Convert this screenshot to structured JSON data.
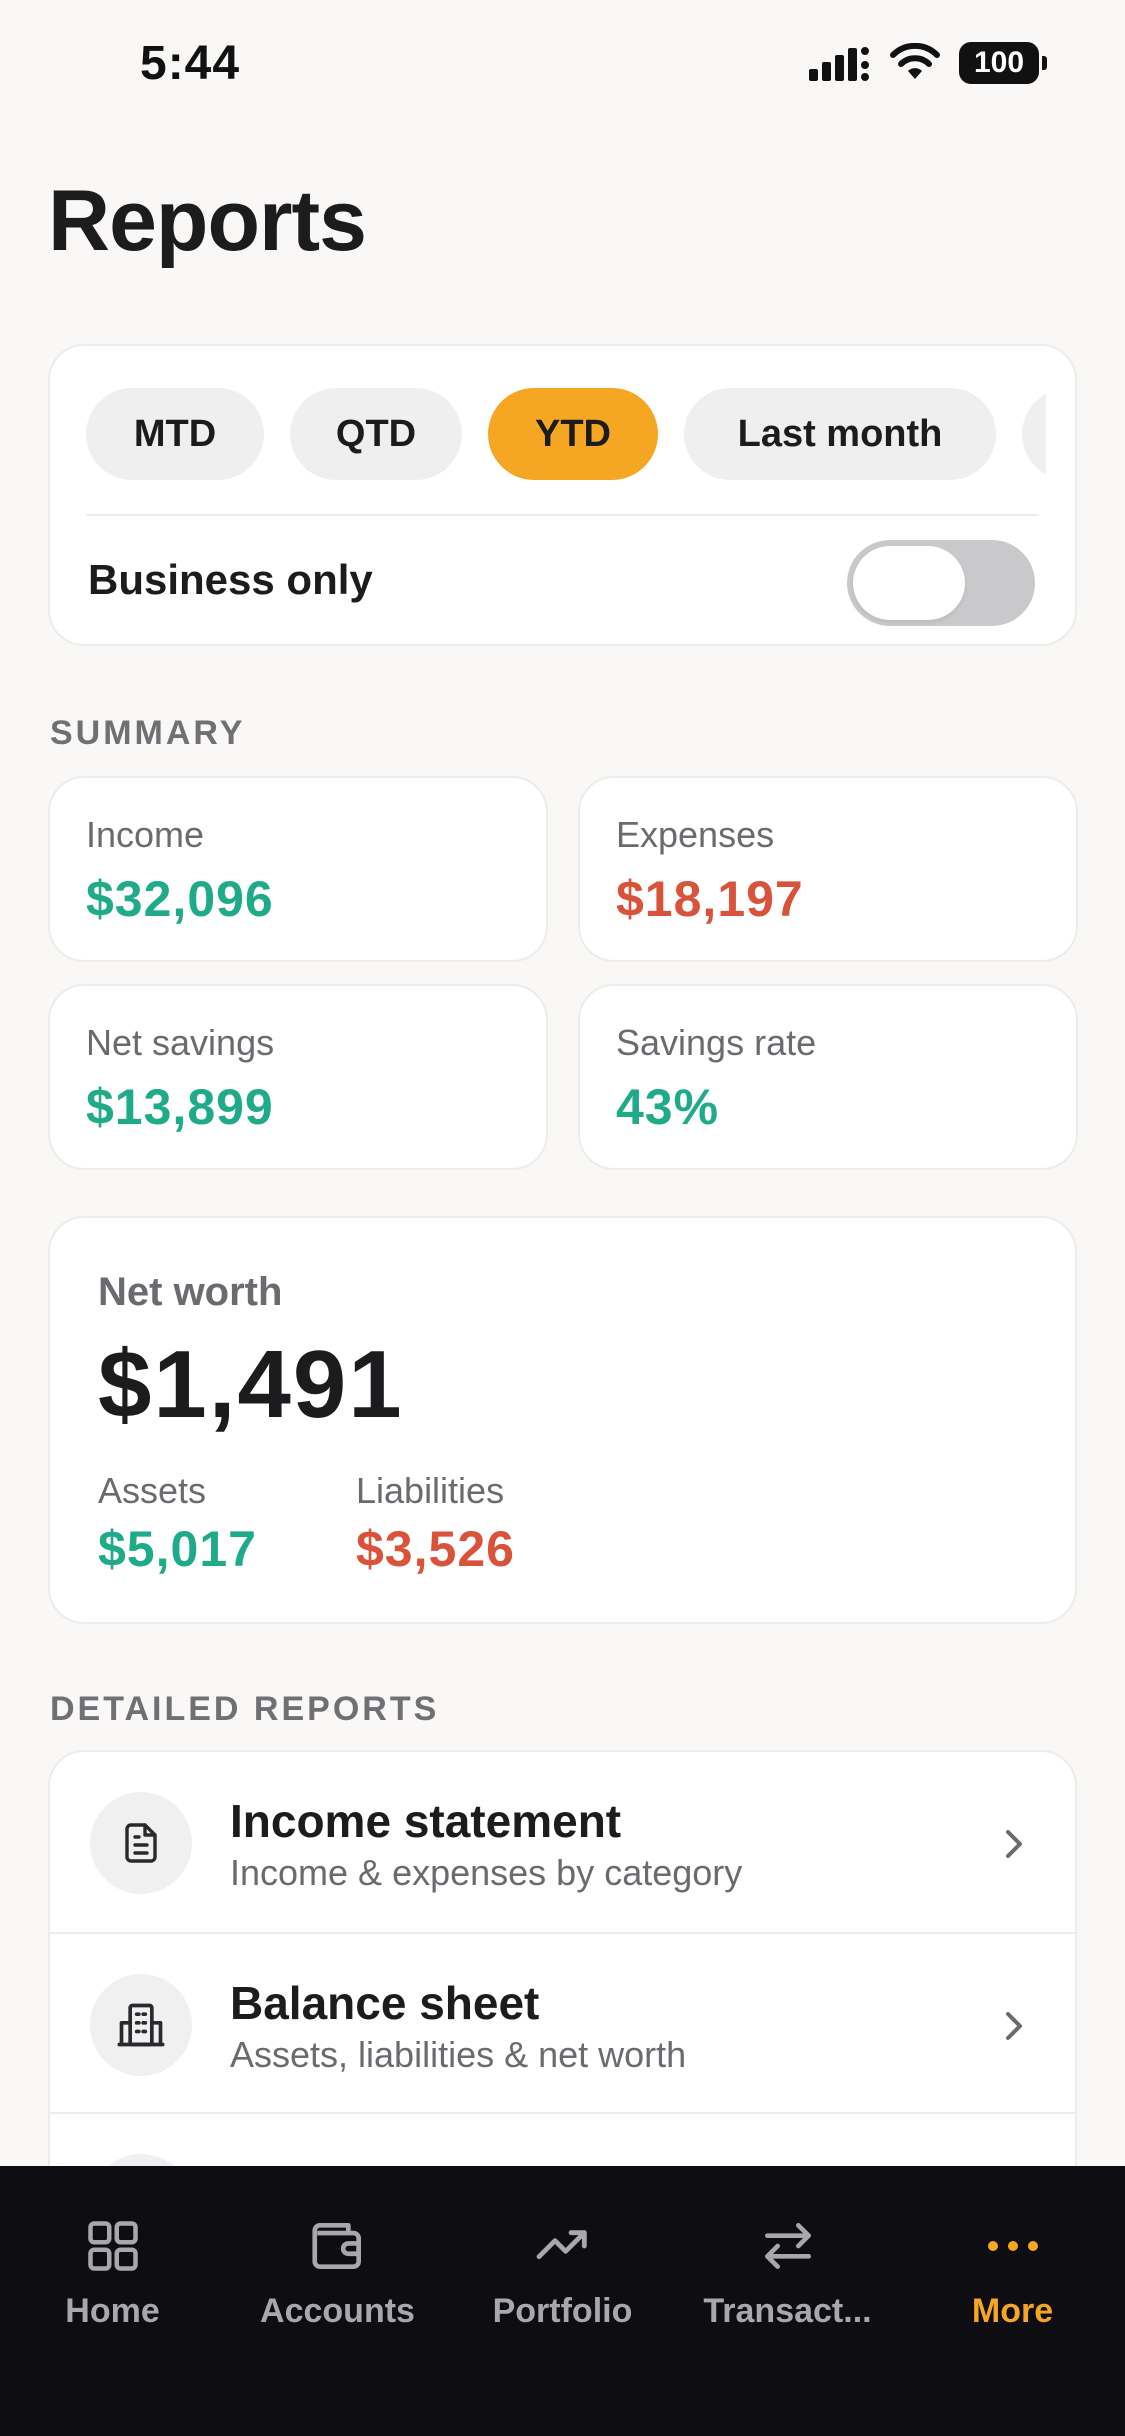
{
  "status_bar": {
    "time": "5:44",
    "battery": "100"
  },
  "header": {
    "title": "Reports"
  },
  "filters": {
    "periods": [
      "MTD",
      "QTD",
      "YTD",
      "Last month"
    ],
    "active_period": "YTD",
    "business_only_label": "Business only",
    "business_only_enabled": false
  },
  "summary": {
    "section_label": "SUMMARY",
    "income": {
      "label": "Income",
      "value": "$32,096"
    },
    "expenses": {
      "label": "Expenses",
      "value": "$18,197"
    },
    "net_savings": {
      "label": "Net savings",
      "value": "$13,899"
    },
    "savings_rate": {
      "label": "Savings rate",
      "value": "43%"
    }
  },
  "net_worth": {
    "label": "Net worth",
    "value": "$1,491",
    "assets": {
      "label": "Assets",
      "value": "$5,017"
    },
    "liabilities": {
      "label": "Liabilities",
      "value": "$3,526"
    }
  },
  "detailed_reports": {
    "section_label": "DETAILED REPORTS",
    "items": [
      {
        "title": "Income statement",
        "subtitle": "Income & expenses by category",
        "icon": "document-icon"
      },
      {
        "title": "Balance sheet",
        "subtitle": "Assets, liabilities & net worth",
        "icon": "building-icon"
      }
    ]
  },
  "tab_bar": {
    "tabs": [
      {
        "label": "Home",
        "icon": "grid-icon"
      },
      {
        "label": "Accounts",
        "icon": "wallet-icon"
      },
      {
        "label": "Portfolio",
        "icon": "trend-up-icon"
      },
      {
        "label": "Transact...",
        "icon": "transfer-icon"
      },
      {
        "label": "More",
        "icon": "more-icon"
      }
    ],
    "active_tab": "More"
  },
  "colors": {
    "accent": "#f5a623",
    "positive": "#1faa8a",
    "negative": "#d9533b",
    "tab_bar_bg": "#0e0e12"
  }
}
